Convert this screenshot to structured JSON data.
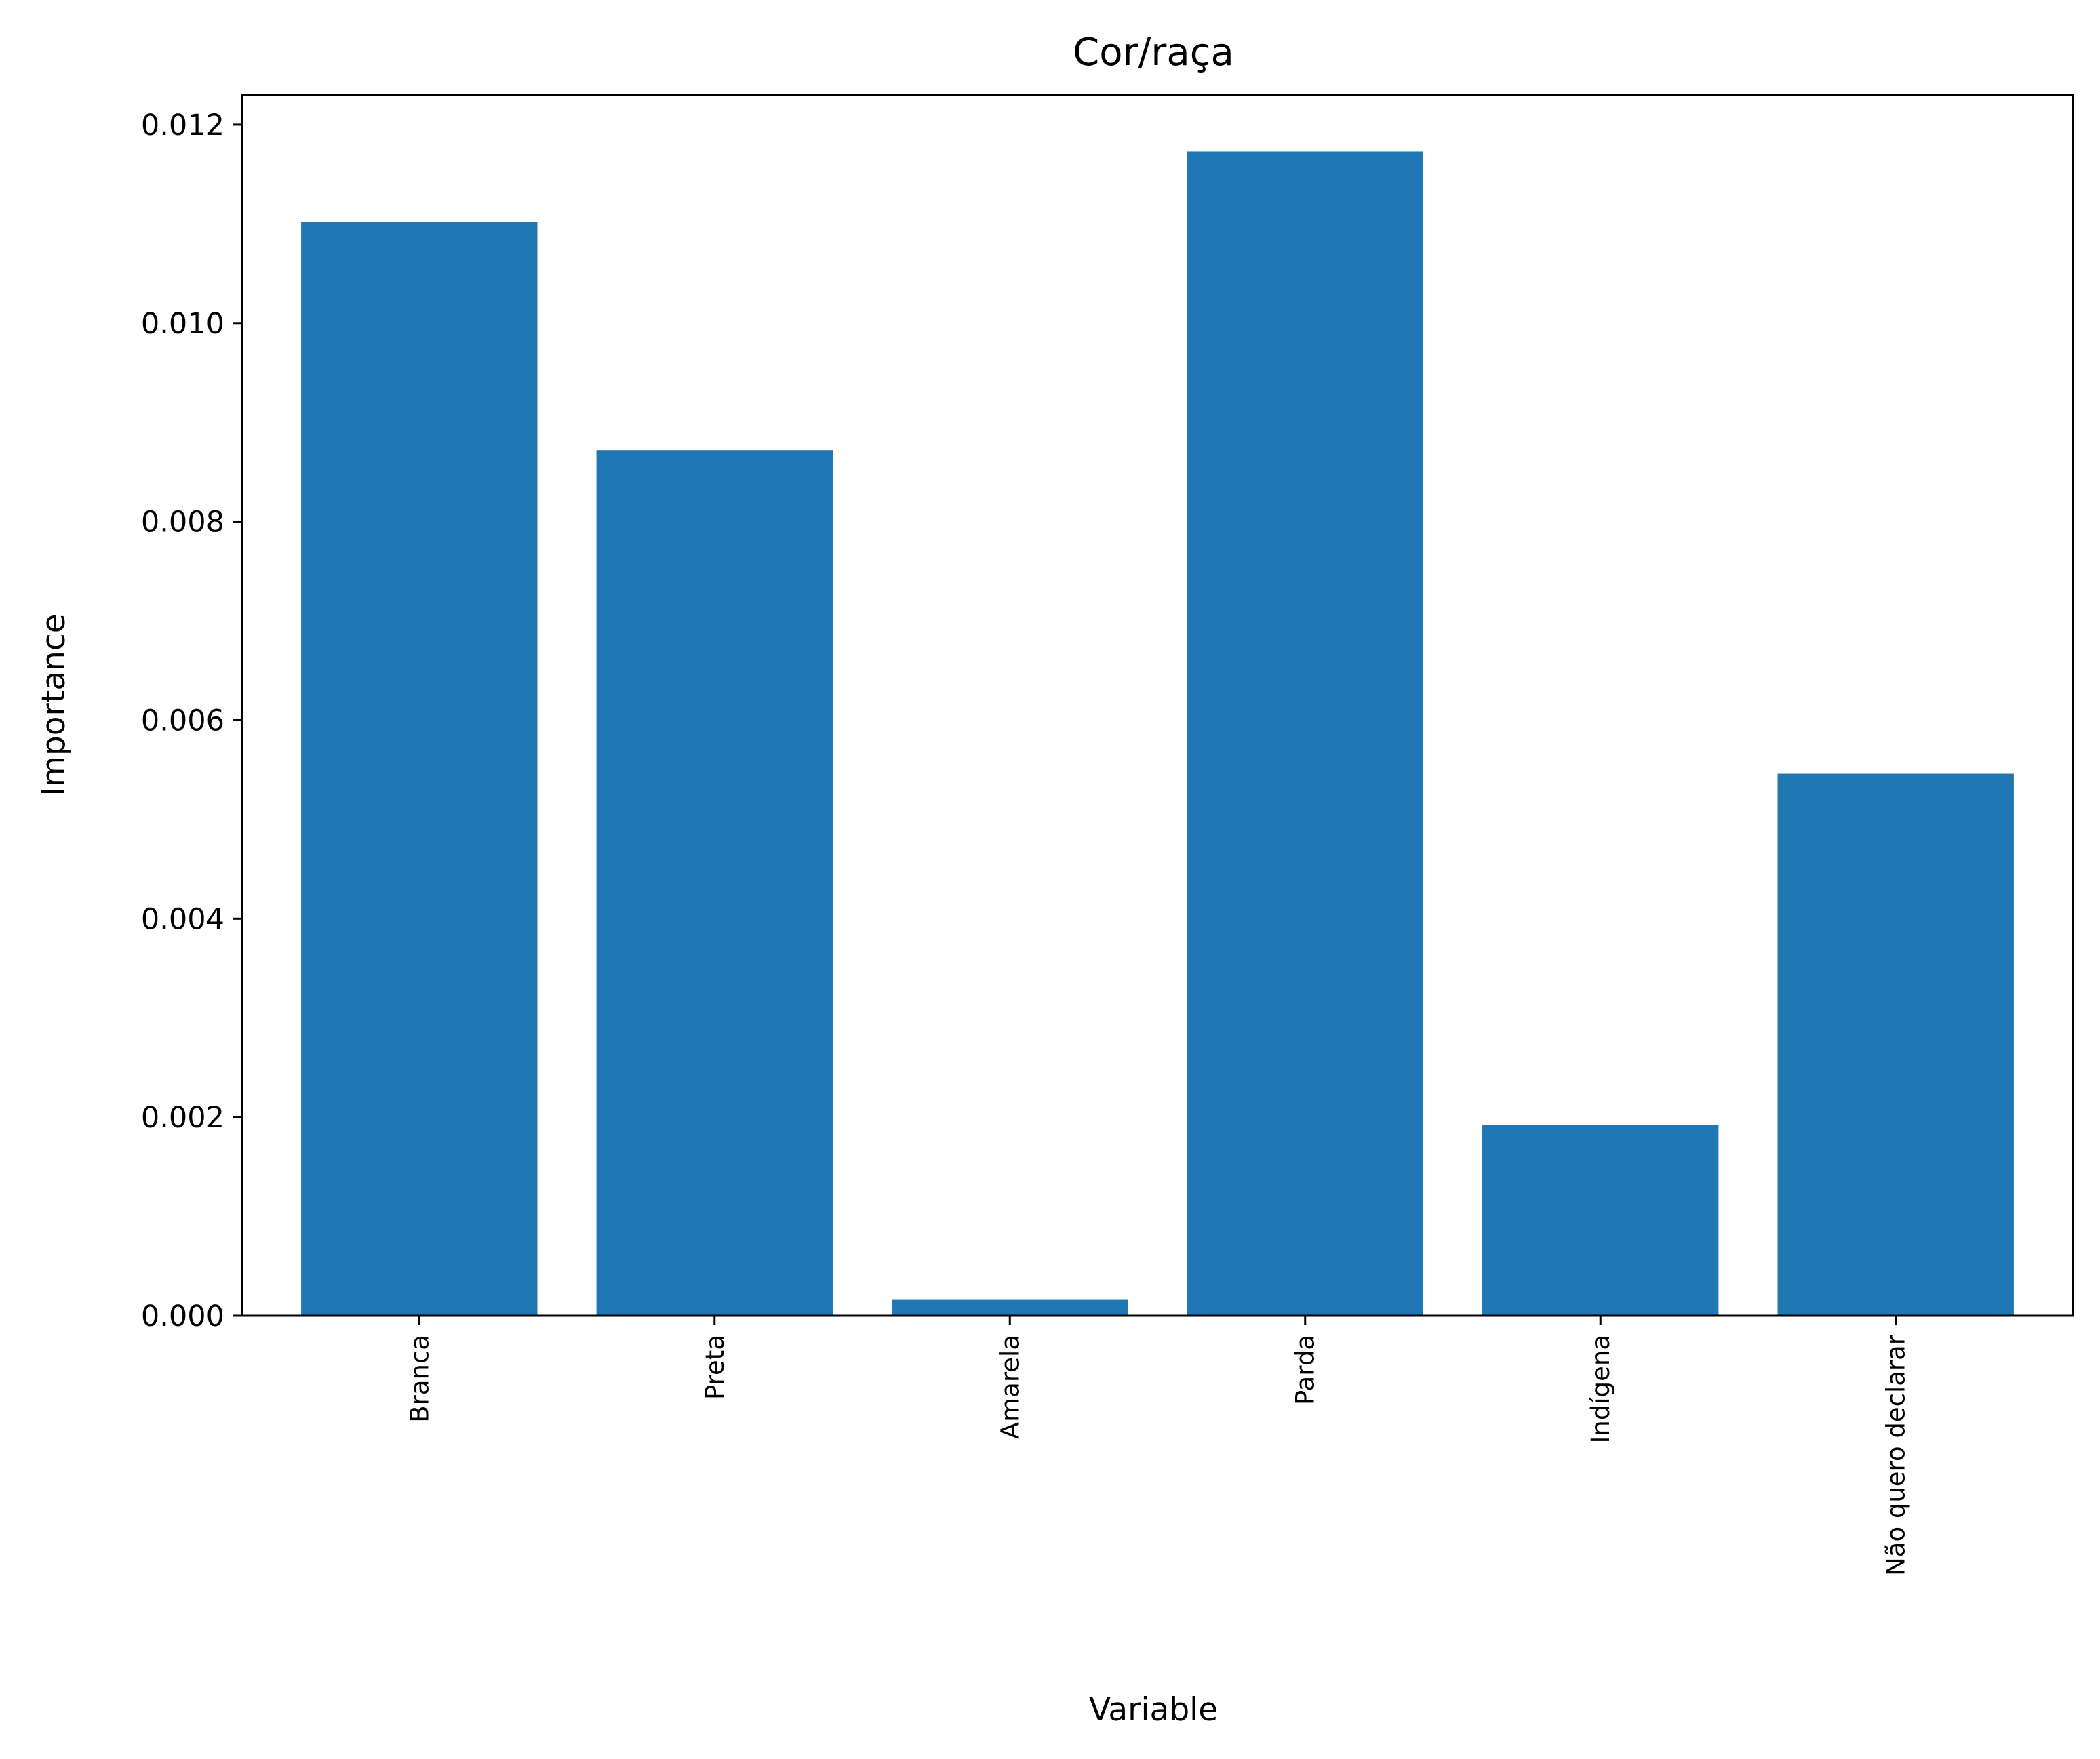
{
  "chart_data": {
    "type": "bar",
    "title": "Cor/raça",
    "xlabel": "Variable",
    "ylabel": "Importance",
    "categories": [
      "Branca",
      "Preta",
      "Amarela",
      "Parda",
      "Indígena",
      "Não quero declarar"
    ],
    "values": [
      0.01102,
      0.00872,
      0.00016,
      0.01173,
      0.00192,
      0.00546
    ],
    "ylim": [
      0,
      0.0123
    ],
    "yticks": [
      "0.000",
      "0.002",
      "0.004",
      "0.006",
      "0.008",
      "0.010",
      "0.012"
    ],
    "ytick_values": [
      0,
      0.002,
      0.004,
      0.006,
      0.008,
      0.01,
      0.012
    ],
    "grid": false,
    "legend": "none",
    "bar_color": "#1f77b4"
  }
}
